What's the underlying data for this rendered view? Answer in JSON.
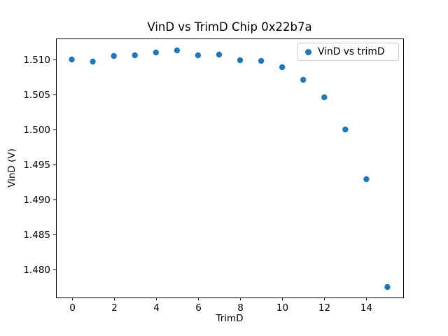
{
  "figure": {
    "background": "#ffffff"
  },
  "chart_data": {
    "type": "scatter",
    "title": "VinD vs TrimD Chip 0x22b7a",
    "xlabel": "TrimD",
    "ylabel": "VinD (V)",
    "x": [
      0,
      1,
      2,
      3,
      4,
      5,
      6,
      7,
      8,
      9,
      10,
      11,
      12,
      13,
      14,
      15
    ],
    "y": [
      1.51,
      1.5097,
      1.5105,
      1.5106,
      1.511,
      1.5113,
      1.5106,
      1.5107,
      1.5099,
      1.5098,
      1.5089,
      1.5071,
      1.5046,
      1.5,
      1.4929,
      1.4775
    ],
    "series": [
      {
        "name": "VinD vs trimD",
        "marker": "circle",
        "color": "#1f77b4"
      }
    ],
    "legend": {
      "label": "VinD vs trimD",
      "position": "upper right"
    },
    "xlim": [
      -0.75,
      15.75
    ],
    "ylim": [
      1.476,
      1.513
    ],
    "xticks": [
      0,
      2,
      4,
      6,
      8,
      10,
      12,
      14
    ],
    "yticks": [
      1.48,
      1.485,
      1.49,
      1.495,
      1.5,
      1.505,
      1.51
    ],
    "ytick_decimals": 3,
    "grid": false,
    "axis_color": "#000000",
    "marker_color": "#1f77b4",
    "marker_radius": 4.2
  }
}
